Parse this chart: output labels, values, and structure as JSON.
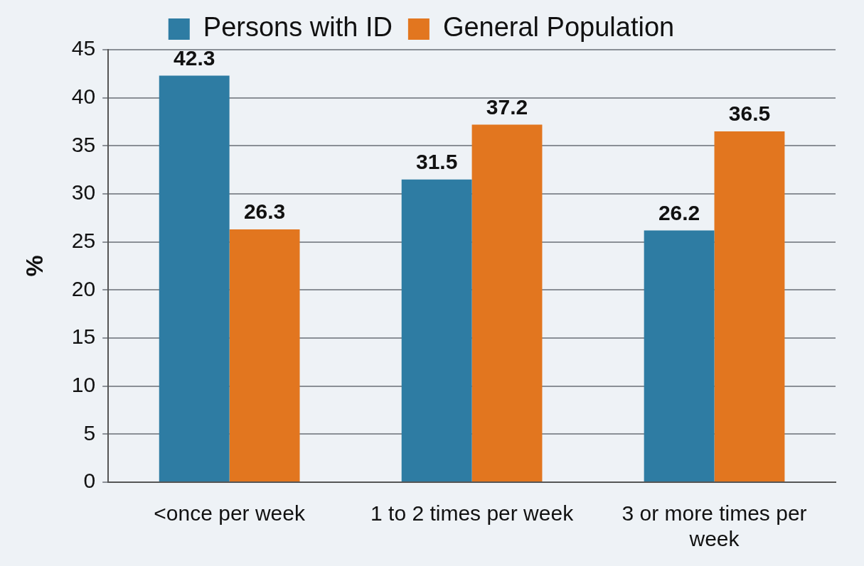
{
  "chart_data": {
    "type": "bar",
    "ylabel": "%",
    "categories": [
      "<once per week",
      "1 to 2 times per week",
      "3 or more times per week"
    ],
    "series": [
      {
        "name": "Persons with ID",
        "color": "#2e7ca3",
        "values": [
          42.3,
          31.5,
          26.2
        ]
      },
      {
        "name": "General Population",
        "color": "#e2761f",
        "values": [
          26.3,
          37.2,
          36.5
        ]
      }
    ],
    "ylim": [
      0,
      45
    ],
    "yticks": [
      0,
      5,
      10,
      15,
      20,
      25,
      30,
      35,
      40,
      45
    ],
    "grid": "y",
    "legend": "top",
    "data_labels": true
  }
}
